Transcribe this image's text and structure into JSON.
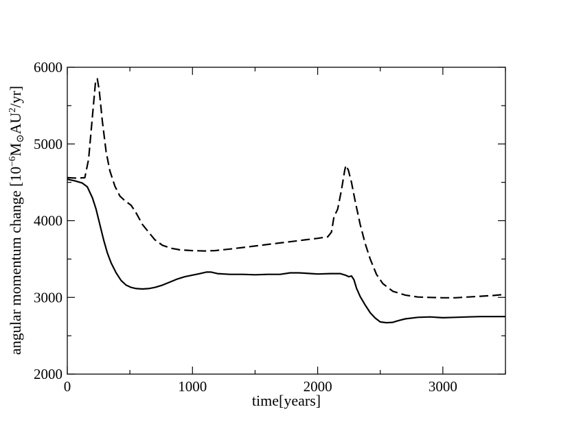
{
  "chart_data": {
    "type": "line",
    "title": "",
    "xlabel": "time[years]",
    "ylabel": {
      "prefix": "angular momentum change [10",
      "exp": "−6",
      "mid": "M",
      "sun_symbol": "⊙",
      "unit": "AU",
      "unit_exp": "2",
      "suffix": "/yr]"
    },
    "xlim": [
      0,
      3500
    ],
    "ylim": [
      2000,
      6000
    ],
    "x_ticks": [
      0,
      1000,
      2000,
      3000
    ],
    "y_ticks": [
      2000,
      3000,
      4000,
      5000,
      6000
    ],
    "x_tick_labels": [
      "0",
      "1000",
      "2000",
      "3000"
    ],
    "y_tick_labels": [
      "2000",
      "3000",
      "4000",
      "5000",
      "6000"
    ],
    "grid": false,
    "legend": "none",
    "series": [
      {
        "style": "dashed",
        "color": "#000000",
        "points": [
          [
            0,
            4560
          ],
          [
            80,
            4555
          ],
          [
            140,
            4560
          ],
          [
            170,
            4800
          ],
          [
            200,
            5350
          ],
          [
            225,
            5800
          ],
          [
            240,
            5850
          ],
          [
            255,
            5700
          ],
          [
            280,
            5300
          ],
          [
            310,
            4900
          ],
          [
            340,
            4650
          ],
          [
            380,
            4450
          ],
          [
            420,
            4320
          ],
          [
            460,
            4260
          ],
          [
            510,
            4200
          ],
          [
            550,
            4100
          ],
          [
            600,
            3950
          ],
          [
            650,
            3850
          ],
          [
            700,
            3750
          ],
          [
            760,
            3680
          ],
          [
            830,
            3640
          ],
          [
            900,
            3620
          ],
          [
            1000,
            3610
          ],
          [
            1100,
            3605
          ],
          [
            1180,
            3610
          ],
          [
            1300,
            3630
          ],
          [
            1400,
            3650
          ],
          [
            1500,
            3670
          ],
          [
            1600,
            3690
          ],
          [
            1700,
            3710
          ],
          [
            1800,
            3730
          ],
          [
            1900,
            3750
          ],
          [
            2000,
            3770
          ],
          [
            2080,
            3790
          ],
          [
            2110,
            3850
          ],
          [
            2130,
            4050
          ],
          [
            2160,
            4150
          ],
          [
            2190,
            4400
          ],
          [
            2215,
            4650
          ],
          [
            2225,
            4720
          ],
          [
            2245,
            4660
          ],
          [
            2270,
            4500
          ],
          [
            2300,
            4250
          ],
          [
            2340,
            3950
          ],
          [
            2380,
            3700
          ],
          [
            2420,
            3500
          ],
          [
            2470,
            3300
          ],
          [
            2520,
            3180
          ],
          [
            2600,
            3080
          ],
          [
            2700,
            3030
          ],
          [
            2800,
            3005
          ],
          [
            2900,
            3000
          ],
          [
            3000,
            2995
          ],
          [
            3100,
            2995
          ],
          [
            3200,
            3005
          ],
          [
            3300,
            3015
          ],
          [
            3400,
            3025
          ],
          [
            3500,
            3040
          ]
        ]
      },
      {
        "style": "solid",
        "color": "#000000",
        "points": [
          [
            0,
            4540
          ],
          [
            60,
            4520
          ],
          [
            120,
            4490
          ],
          [
            160,
            4440
          ],
          [
            200,
            4300
          ],
          [
            230,
            4150
          ],
          [
            260,
            3950
          ],
          [
            290,
            3750
          ],
          [
            320,
            3580
          ],
          [
            350,
            3450
          ],
          [
            390,
            3320
          ],
          [
            430,
            3220
          ],
          [
            470,
            3160
          ],
          [
            510,
            3130
          ],
          [
            550,
            3115
          ],
          [
            600,
            3110
          ],
          [
            650,
            3115
          ],
          [
            700,
            3130
          ],
          [
            760,
            3160
          ],
          [
            820,
            3200
          ],
          [
            880,
            3240
          ],
          [
            940,
            3270
          ],
          [
            1000,
            3290
          ],
          [
            1060,
            3310
          ],
          [
            1110,
            3330
          ],
          [
            1150,
            3330
          ],
          [
            1200,
            3310
          ],
          [
            1300,
            3300
          ],
          [
            1400,
            3300
          ],
          [
            1500,
            3295
          ],
          [
            1600,
            3300
          ],
          [
            1700,
            3300
          ],
          [
            1780,
            3320
          ],
          [
            1850,
            3320
          ],
          [
            1900,
            3315
          ],
          [
            1950,
            3310
          ],
          [
            2000,
            3305
          ],
          [
            2100,
            3310
          ],
          [
            2180,
            3310
          ],
          [
            2220,
            3290
          ],
          [
            2250,
            3270
          ],
          [
            2270,
            3280
          ],
          [
            2290,
            3230
          ],
          [
            2310,
            3120
          ],
          [
            2340,
            3010
          ],
          [
            2380,
            2900
          ],
          [
            2420,
            2800
          ],
          [
            2460,
            2730
          ],
          [
            2500,
            2680
          ],
          [
            2550,
            2670
          ],
          [
            2600,
            2675
          ],
          [
            2650,
            2700
          ],
          [
            2700,
            2720
          ],
          [
            2800,
            2740
          ],
          [
            2900,
            2745
          ],
          [
            3000,
            2735
          ],
          [
            3100,
            2740
          ],
          [
            3200,
            2745
          ],
          [
            3300,
            2750
          ],
          [
            3400,
            2750
          ],
          [
            3500,
            2750
          ]
        ]
      }
    ]
  }
}
